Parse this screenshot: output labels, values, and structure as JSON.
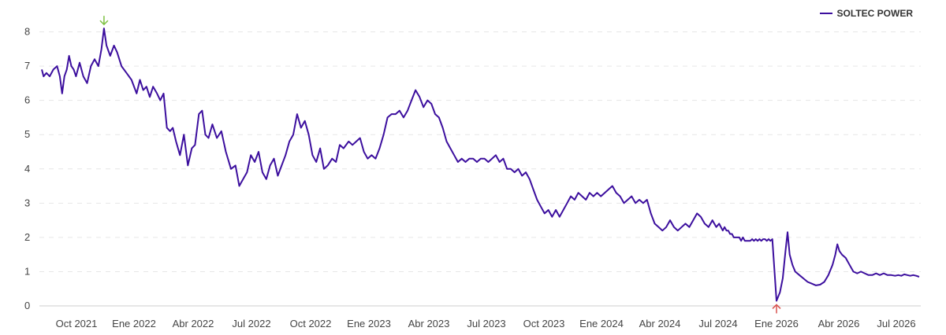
{
  "colors": {
    "line": "#3c0f9e",
    "high_marker": "#7dc142",
    "low_marker": "#d9534f",
    "grid": "#e6e6e6",
    "axis": "#cccccc"
  },
  "chart_data": {
    "type": "line",
    "legend": {
      "position": "top-right"
    },
    "grid": true,
    "ylim": [
      0,
      8.5
    ],
    "y_ticks": [
      "0",
      "1",
      "2",
      "3",
      "4",
      "5",
      "6",
      "7",
      "8"
    ],
    "x_ticks": [
      {
        "date": "2021-10-01",
        "label": "Oct 2021"
      },
      {
        "date": "2022-01-01",
        "label": "Ene 2022"
      },
      {
        "date": "2022-04-01",
        "label": "Abr 2022"
      },
      {
        "date": "2022-07-01",
        "label": "Jul 2022"
      },
      {
        "date": "2022-10-01",
        "label": "Oct 2022"
      },
      {
        "date": "2023-01-01",
        "label": "Ene 2023"
      },
      {
        "date": "2023-04-01",
        "label": "Abr 2023"
      },
      {
        "date": "2023-07-01",
        "label": "Jul 2023"
      },
      {
        "date": "2023-10-01",
        "label": "Oct 2023"
      },
      {
        "date": "2024-01-01",
        "label": "Ene 2024"
      },
      {
        "date": "2024-04-01",
        "label": "Abr 2024"
      },
      {
        "date": "2024-07-01",
        "label": "Jul 2024"
      },
      {
        "date": "2026-01-01",
        "label": "Ene 2026"
      },
      {
        "date": "2026-04-01",
        "label": "Abr 2026"
      },
      {
        "date": "2026-07-01",
        "label": "Jul 2026"
      }
    ],
    "series": [
      {
        "name": "SOLTEC POWER",
        "points": [
          [
            "2021-07-18",
            6.9
          ],
          [
            "2021-07-22",
            6.7
          ],
          [
            "2021-07-28",
            6.8
          ],
          [
            "2021-08-04",
            6.7
          ],
          [
            "2021-08-12",
            6.9
          ],
          [
            "2021-08-20",
            7.0
          ],
          [
            "2021-08-26",
            6.7
          ],
          [
            "2021-08-31",
            6.2
          ],
          [
            "2021-09-05",
            6.7
          ],
          [
            "2021-09-10",
            6.9
          ],
          [
            "2021-09-15",
            7.3
          ],
          [
            "2021-09-20",
            7.0
          ],
          [
            "2021-09-25",
            6.9
          ],
          [
            "2021-09-30",
            6.7
          ],
          [
            "2021-10-06",
            7.1
          ],
          [
            "2021-10-12",
            6.7
          ],
          [
            "2021-10-18",
            6.5
          ],
          [
            "2021-10-24",
            7.0
          ],
          [
            "2021-10-30",
            7.2
          ],
          [
            "2021-11-05",
            7.0
          ],
          [
            "2021-11-10",
            7.5
          ],
          [
            "2021-11-14",
            8.1
          ],
          [
            "2021-11-18",
            7.6
          ],
          [
            "2021-11-24",
            7.3
          ],
          [
            "2021-11-30",
            7.6
          ],
          [
            "2021-12-05",
            7.4
          ],
          [
            "2021-12-12",
            7.0
          ],
          [
            "2021-12-20",
            6.8
          ],
          [
            "2021-12-28",
            6.6
          ],
          [
            "2022-01-05",
            6.2
          ],
          [
            "2022-01-10",
            6.6
          ],
          [
            "2022-01-15",
            6.3
          ],
          [
            "2022-01-20",
            6.4
          ],
          [
            "2022-01-25",
            6.1
          ],
          [
            "2022-01-30",
            6.4
          ],
          [
            "2022-02-05",
            6.2
          ],
          [
            "2022-02-10",
            6.0
          ],
          [
            "2022-02-15",
            6.2
          ],
          [
            "2022-02-20",
            5.2
          ],
          [
            "2022-02-25",
            5.1
          ],
          [
            "2022-03-01",
            5.2
          ],
          [
            "2022-03-06",
            4.8
          ],
          [
            "2022-03-12",
            4.4
          ],
          [
            "2022-03-18",
            5.0
          ],
          [
            "2022-03-24",
            4.1
          ],
          [
            "2022-03-30",
            4.6
          ],
          [
            "2022-04-04",
            4.7
          ],
          [
            "2022-04-10",
            5.6
          ],
          [
            "2022-04-15",
            5.7
          ],
          [
            "2022-04-20",
            5.0
          ],
          [
            "2022-04-25",
            4.9
          ],
          [
            "2022-05-01",
            5.3
          ],
          [
            "2022-05-08",
            4.9
          ],
          [
            "2022-05-15",
            5.1
          ],
          [
            "2022-05-22",
            4.5
          ],
          [
            "2022-05-30",
            4.0
          ],
          [
            "2022-06-06",
            4.1
          ],
          [
            "2022-06-12",
            3.5
          ],
          [
            "2022-06-18",
            3.7
          ],
          [
            "2022-06-24",
            3.9
          ],
          [
            "2022-06-30",
            4.4
          ],
          [
            "2022-07-06",
            4.2
          ],
          [
            "2022-07-12",
            4.5
          ],
          [
            "2022-07-18",
            3.9
          ],
          [
            "2022-07-24",
            3.7
          ],
          [
            "2022-07-30",
            4.1
          ],
          [
            "2022-08-05",
            4.3
          ],
          [
            "2022-08-11",
            3.8
          ],
          [
            "2022-08-17",
            4.1
          ],
          [
            "2022-08-23",
            4.4
          ],
          [
            "2022-08-29",
            4.8
          ],
          [
            "2022-09-04",
            5.0
          ],
          [
            "2022-09-10",
            5.6
          ],
          [
            "2022-09-16",
            5.2
          ],
          [
            "2022-09-22",
            5.4
          ],
          [
            "2022-09-28",
            5.0
          ],
          [
            "2022-10-04",
            4.4
          ],
          [
            "2022-10-10",
            4.2
          ],
          [
            "2022-10-16",
            4.6
          ],
          [
            "2022-10-22",
            4.0
          ],
          [
            "2022-10-28",
            4.1
          ],
          [
            "2022-11-04",
            4.3
          ],
          [
            "2022-11-10",
            4.2
          ],
          [
            "2022-11-16",
            4.7
          ],
          [
            "2022-11-22",
            4.6
          ],
          [
            "2022-11-30",
            4.8
          ],
          [
            "2022-12-06",
            4.7
          ],
          [
            "2022-12-12",
            4.8
          ],
          [
            "2022-12-18",
            4.9
          ],
          [
            "2022-12-24",
            4.5
          ],
          [
            "2022-12-30",
            4.3
          ],
          [
            "2023-01-05",
            4.4
          ],
          [
            "2023-01-11",
            4.3
          ],
          [
            "2023-01-17",
            4.6
          ],
          [
            "2023-01-23",
            5.0
          ],
          [
            "2023-01-29",
            5.5
          ],
          [
            "2023-02-04",
            5.6
          ],
          [
            "2023-02-10",
            5.6
          ],
          [
            "2023-02-16",
            5.7
          ],
          [
            "2023-02-22",
            5.5
          ],
          [
            "2023-02-28",
            5.7
          ],
          [
            "2023-03-06",
            6.0
          ],
          [
            "2023-03-12",
            6.3
          ],
          [
            "2023-03-18",
            6.1
          ],
          [
            "2023-03-24",
            5.8
          ],
          [
            "2023-03-30",
            6.0
          ],
          [
            "2023-04-05",
            5.9
          ],
          [
            "2023-04-11",
            5.6
          ],
          [
            "2023-04-17",
            5.5
          ],
          [
            "2023-04-23",
            5.2
          ],
          [
            "2023-04-29",
            4.8
          ],
          [
            "2023-05-05",
            4.6
          ],
          [
            "2023-05-11",
            4.4
          ],
          [
            "2023-05-17",
            4.2
          ],
          [
            "2023-05-23",
            4.3
          ],
          [
            "2023-05-29",
            4.2
          ],
          [
            "2023-06-04",
            4.3
          ],
          [
            "2023-06-10",
            4.3
          ],
          [
            "2023-06-16",
            4.2
          ],
          [
            "2023-06-22",
            4.3
          ],
          [
            "2023-06-28",
            4.3
          ],
          [
            "2023-07-04",
            4.2
          ],
          [
            "2023-07-10",
            4.3
          ],
          [
            "2023-07-16",
            4.4
          ],
          [
            "2023-07-22",
            4.2
          ],
          [
            "2023-07-28",
            4.3
          ],
          [
            "2023-08-03",
            4.0
          ],
          [
            "2023-08-09",
            4.0
          ],
          [
            "2023-08-15",
            3.9
          ],
          [
            "2023-08-21",
            4.0
          ],
          [
            "2023-08-27",
            3.8
          ],
          [
            "2023-09-02",
            3.9
          ],
          [
            "2023-09-08",
            3.7
          ],
          [
            "2023-09-14",
            3.4
          ],
          [
            "2023-09-20",
            3.1
          ],
          [
            "2023-09-26",
            2.9
          ],
          [
            "2023-10-02",
            2.7
          ],
          [
            "2023-10-08",
            2.8
          ],
          [
            "2023-10-14",
            2.6
          ],
          [
            "2023-10-20",
            2.8
          ],
          [
            "2023-10-26",
            2.6
          ],
          [
            "2023-11-01",
            2.8
          ],
          [
            "2023-11-07",
            3.0
          ],
          [
            "2023-11-13",
            3.2
          ],
          [
            "2023-11-19",
            3.1
          ],
          [
            "2023-11-25",
            3.3
          ],
          [
            "2023-12-01",
            3.2
          ],
          [
            "2023-12-07",
            3.1
          ],
          [
            "2023-12-13",
            3.3
          ],
          [
            "2023-12-19",
            3.2
          ],
          [
            "2023-12-25",
            3.3
          ],
          [
            "2023-12-31",
            3.2
          ],
          [
            "2024-01-06",
            3.3
          ],
          [
            "2024-01-12",
            3.4
          ],
          [
            "2024-01-18",
            3.5
          ],
          [
            "2024-01-24",
            3.3
          ],
          [
            "2024-01-30",
            3.2
          ],
          [
            "2024-02-05",
            3.0
          ],
          [
            "2024-02-11",
            3.1
          ],
          [
            "2024-02-17",
            3.2
          ],
          [
            "2024-02-23",
            3.0
          ],
          [
            "2024-02-29",
            3.1
          ],
          [
            "2024-03-06",
            3.0
          ],
          [
            "2024-03-12",
            3.1
          ],
          [
            "2024-03-18",
            2.7
          ],
          [
            "2024-03-24",
            2.4
          ],
          [
            "2024-03-30",
            2.3
          ],
          [
            "2024-04-05",
            2.2
          ],
          [
            "2024-04-11",
            2.3
          ],
          [
            "2024-04-17",
            2.5
          ],
          [
            "2024-04-23",
            2.3
          ],
          [
            "2024-04-29",
            2.2
          ],
          [
            "2024-05-05",
            2.3
          ],
          [
            "2024-05-11",
            2.4
          ],
          [
            "2024-05-17",
            2.3
          ],
          [
            "2024-05-23",
            2.5
          ],
          [
            "2024-05-29",
            2.7
          ],
          [
            "2024-06-04",
            2.6
          ],
          [
            "2024-06-10",
            2.4
          ],
          [
            "2024-06-16",
            2.3
          ],
          [
            "2024-06-22",
            2.5
          ],
          [
            "2024-06-28",
            2.3
          ],
          [
            "2024-07-04",
            2.4
          ],
          [
            "2024-07-10",
            2.3
          ],
          [
            "2024-07-16",
            2.2
          ],
          [
            "2024-07-22",
            2.3
          ],
          [
            "2024-07-28",
            2.2
          ],
          [
            "2024-08-03",
            2.2
          ],
          [
            "2024-08-09",
            2.1
          ],
          [
            "2024-08-15",
            2.1
          ],
          [
            "2024-08-21",
            2.0
          ],
          [
            "2024-08-27",
            2.0
          ],
          [
            "2024-09-02",
            2.0
          ],
          [
            "2024-09-08",
            2.0
          ],
          [
            "2024-09-14",
            1.9
          ],
          [
            "2024-09-20",
            2.0
          ],
          [
            "2024-09-26",
            1.9
          ],
          [
            "2024-10-02",
            1.9
          ],
          [
            "2024-10-08",
            1.9
          ],
          [
            "2024-10-14",
            1.9
          ],
          [
            "2024-10-20",
            1.95
          ],
          [
            "2024-10-26",
            1.9
          ],
          [
            "2024-11-01",
            1.95
          ],
          [
            "2024-11-07",
            1.9
          ],
          [
            "2024-11-13",
            1.95
          ],
          [
            "2024-11-19",
            1.9
          ],
          [
            "2024-11-25",
            1.95
          ],
          [
            "2024-12-01",
            1.95
          ],
          [
            "2024-12-07",
            1.9
          ],
          [
            "2024-12-13",
            1.95
          ],
          [
            "2024-12-19",
            1.9
          ],
          [
            "2024-12-25",
            1.95
          ],
          [
            "2026-01-01",
            0.15
          ],
          [
            "2026-01-06",
            0.4
          ],
          [
            "2026-01-10",
            0.8
          ],
          [
            "2026-01-14",
            1.6
          ],
          [
            "2026-01-17",
            2.15
          ],
          [
            "2026-01-20",
            1.5
          ],
          [
            "2026-01-24",
            1.2
          ],
          [
            "2026-01-28",
            1.0
          ],
          [
            "2026-02-03",
            0.9
          ],
          [
            "2026-02-09",
            0.8
          ],
          [
            "2026-02-15",
            0.7
          ],
          [
            "2026-02-21",
            0.65
          ],
          [
            "2026-02-27",
            0.6
          ],
          [
            "2026-03-05",
            0.62
          ],
          [
            "2026-03-11",
            0.7
          ],
          [
            "2026-03-17",
            0.9
          ],
          [
            "2026-03-23",
            1.2
          ],
          [
            "2026-03-27",
            1.5
          ],
          [
            "2026-03-30",
            1.8
          ],
          [
            "2026-04-02",
            1.6
          ],
          [
            "2026-04-06",
            1.5
          ],
          [
            "2026-04-12",
            1.4
          ],
          [
            "2026-04-18",
            1.2
          ],
          [
            "2026-04-24",
            1.0
          ],
          [
            "2026-04-30",
            0.95
          ],
          [
            "2026-05-06",
            1.0
          ],
          [
            "2026-05-12",
            0.95
          ],
          [
            "2026-05-18",
            0.9
          ],
          [
            "2026-05-24",
            0.9
          ],
          [
            "2026-05-30",
            0.95
          ],
          [
            "2026-06-05",
            0.9
          ],
          [
            "2026-06-11",
            0.95
          ],
          [
            "2026-06-17",
            0.9
          ],
          [
            "2026-06-23",
            0.9
          ],
          [
            "2026-06-29",
            0.88
          ],
          [
            "2026-07-05",
            0.9
          ],
          [
            "2026-07-11",
            0.88
          ],
          [
            "2026-07-17",
            0.92
          ],
          [
            "2026-07-23",
            0.9
          ],
          [
            "2026-07-29",
            0.88
          ],
          [
            "2026-08-04",
            0.9
          ],
          [
            "2026-08-10",
            0.88
          ],
          [
            "2026-08-16",
            0.85
          ]
        ]
      }
    ],
    "markers": [
      {
        "type": "high",
        "date": "2021-11-14",
        "value": 8.1
      },
      {
        "type": "low",
        "date": "2026-01-01",
        "value": 0.15
      }
    ]
  }
}
